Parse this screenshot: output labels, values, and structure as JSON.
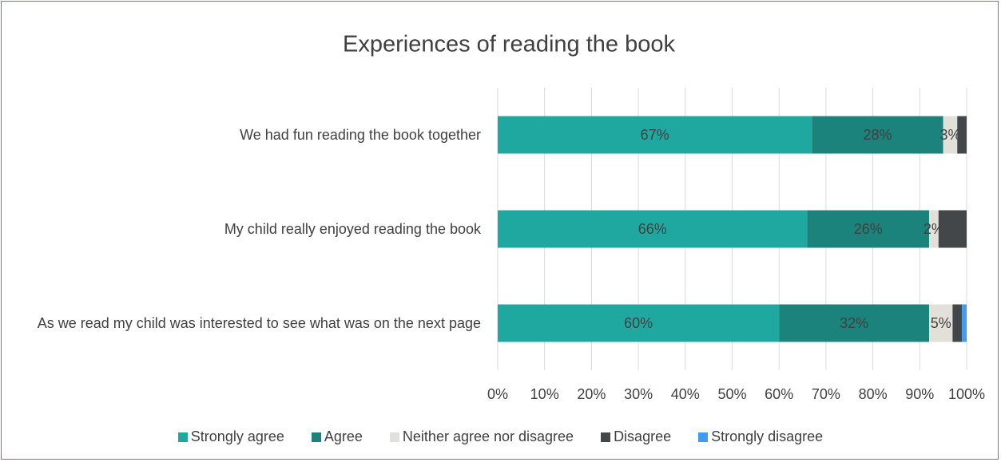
{
  "chart_data": {
    "type": "stacked-bar-horizontal",
    "title": "Experiences of reading the book",
    "categories": [
      "We had fun reading the book together",
      "My child really enjoyed reading the book",
      "As we read my child was interested to see what was on the next page"
    ],
    "series": [
      {
        "name": "Strongly agree",
        "color": "#1fa8a0",
        "values": [
          67,
          66,
          60
        ],
        "value_labels": [
          "67%",
          "66%",
          "60%"
        ]
      },
      {
        "name": "Agree",
        "color": "#1b837c",
        "values": [
          28,
          26,
          32
        ],
        "value_labels": [
          "28%",
          "26%",
          "32%"
        ]
      },
      {
        "name": "Neither agree nor disagree",
        "color": "#e3dfd9",
        "values": [
          3,
          2,
          5
        ],
        "value_labels": [
          "3%",
          "2%",
          "5%"
        ]
      },
      {
        "name": "Disagree",
        "color": "#44474a",
        "values": [
          2,
          6,
          2
        ]
      },
      {
        "name": "Strongly disagree",
        "color": "#3d9cf2",
        "values": [
          0,
          0,
          1
        ]
      }
    ],
    "xlim": [
      0,
      100
    ],
    "xticks": [
      {
        "value": 0,
        "label": "0%"
      },
      {
        "value": 10,
        "label": "10%"
      },
      {
        "value": 20,
        "label": "20%"
      },
      {
        "value": 30,
        "label": "30%"
      },
      {
        "value": 40,
        "label": "40%"
      },
      {
        "value": 50,
        "label": "50%"
      },
      {
        "value": 60,
        "label": "60%"
      },
      {
        "value": 70,
        "label": "70%"
      },
      {
        "value": 80,
        "label": "80%"
      },
      {
        "value": 90,
        "label": "90%"
      },
      {
        "value": 100,
        "label": "100%"
      }
    ],
    "grid": true,
    "legend": "bottom"
  }
}
